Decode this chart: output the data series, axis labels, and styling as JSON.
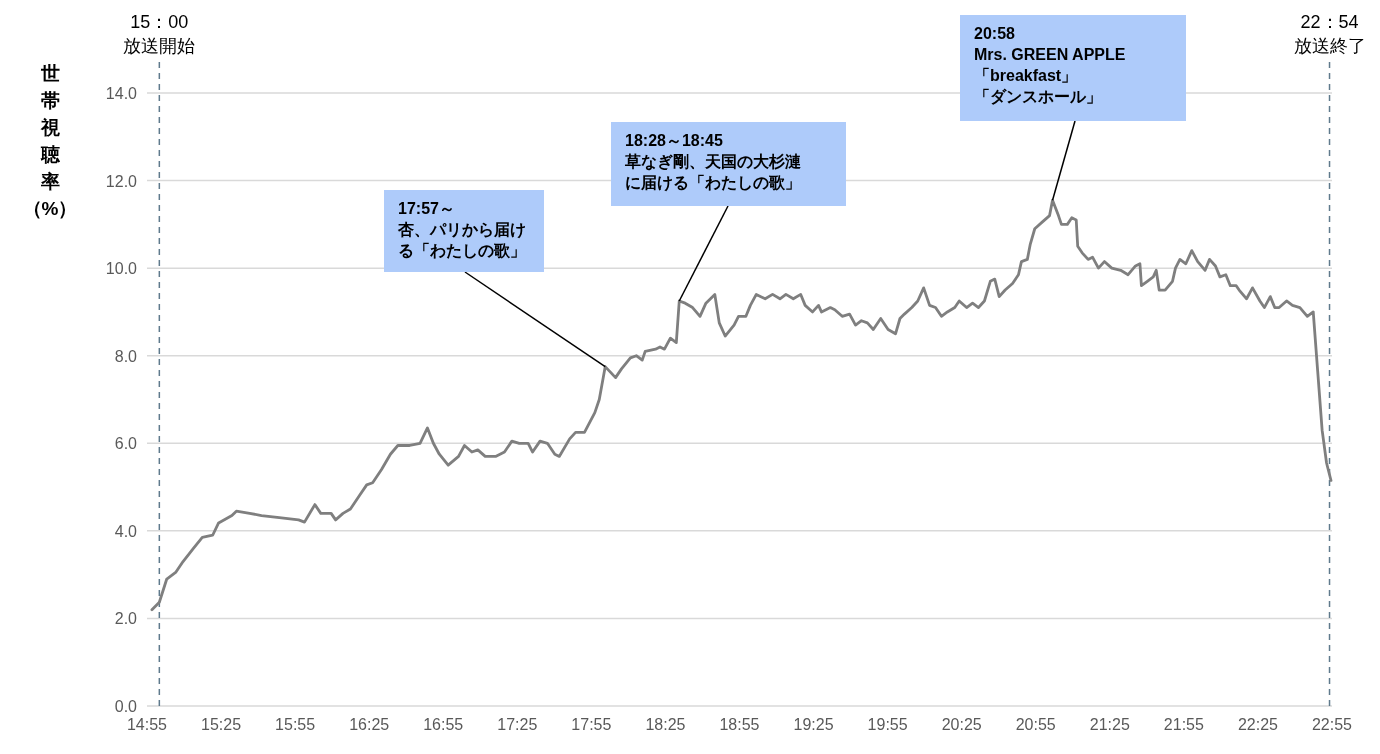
{
  "chart_data": {
    "type": "line",
    "ylabel": "世帯視聴率（%）",
    "grid": "y",
    "marker": "none",
    "line_style": "solid",
    "xlim": [
      14.9167,
      22.9167
    ],
    "ylim": [
      0,
      14
    ],
    "xticks": [
      {
        "value": 14.9167,
        "label": "14:55"
      },
      {
        "value": 15.4167,
        "label": "15:25"
      },
      {
        "value": 15.9167,
        "label": "15:55"
      },
      {
        "value": 16.4167,
        "label": "16:25"
      },
      {
        "value": 16.9167,
        "label": "16:55"
      },
      {
        "value": 17.4167,
        "label": "17:25"
      },
      {
        "value": 17.9167,
        "label": "17:55"
      },
      {
        "value": 18.4167,
        "label": "18:25"
      },
      {
        "value": 18.9167,
        "label": "18:55"
      },
      {
        "value": 19.4167,
        "label": "19:25"
      },
      {
        "value": 19.9167,
        "label": "19:55"
      },
      {
        "value": 20.4167,
        "label": "20:25"
      },
      {
        "value": 20.9167,
        "label": "20:55"
      },
      {
        "value": 21.4167,
        "label": "21:25"
      },
      {
        "value": 21.9167,
        "label": "21:55"
      },
      {
        "value": 22.4167,
        "label": "22:25"
      },
      {
        "value": 22.9167,
        "label": "22:55"
      }
    ],
    "yticks": [
      {
        "value": 0,
        "label": "0.0"
      },
      {
        "value": 2,
        "label": "2.0"
      },
      {
        "value": 4,
        "label": "4.0"
      },
      {
        "value": 6,
        "label": "6.0"
      },
      {
        "value": 8,
        "label": "8.0"
      },
      {
        "value": 10,
        "label": "10.0"
      },
      {
        "value": 12,
        "label": "12.0"
      },
      {
        "value": 14,
        "label": "14.0"
      }
    ],
    "ref_lines": [
      {
        "axis": "x",
        "value": 15.0,
        "label": "15：00\n放送開始",
        "color": "#5f7a8c",
        "line_style": "dashed"
      },
      {
        "axis": "x",
        "value": 22.9,
        "label": "22：54\n放送終了",
        "color": "#5f7a8c",
        "line_style": "dashed"
      }
    ],
    "annotations": [
      {
        "text": "17:57～杏、パリから届ける「わたしの歌」",
        "x": 18.01,
        "y": 7.75
      },
      {
        "text": "18:28～18:45草なぎ剛、天国の大杉漣に届ける「わたしの歌」",
        "x": 18.51,
        "y": 9.25
      },
      {
        "text": "20:58 Mrs. GREEN APPLE 「breakfast」「ダンスホール」",
        "x": 21.03,
        "y": 11.55
      }
    ],
    "series": [
      {
        "color": "#7f7f7f",
        "x": [
          14.95,
          15.0,
          15.05,
          15.11,
          15.16,
          15.23,
          15.29,
          15.36,
          15.4,
          15.49,
          15.52,
          15.61,
          15.69,
          15.81,
          15.94,
          15.98,
          16.05,
          16.09,
          16.16,
          16.19,
          16.24,
          16.29,
          16.35,
          16.4,
          16.44,
          16.5,
          16.56,
          16.61,
          16.69,
          16.76,
          16.81,
          16.85,
          16.89,
          16.95,
          17.02,
          17.06,
          17.11,
          17.15,
          17.2,
          17.27,
          17.33,
          17.38,
          17.43,
          17.49,
          17.52,
          17.57,
          17.62,
          17.67,
          17.7,
          17.77,
          17.81,
          17.87,
          17.94,
          17.97,
          18.01,
          18.08,
          18.12,
          18.18,
          18.22,
          18.26,
          18.28,
          18.35,
          18.38,
          18.41,
          18.45,
          18.49,
          18.51,
          18.55,
          18.6,
          18.65,
          18.69,
          18.75,
          18.78,
          18.82,
          18.88,
          18.91,
          18.96,
          18.99,
          19.03,
          19.09,
          19.14,
          19.19,
          19.23,
          19.28,
          19.33,
          19.36,
          19.41,
          19.45,
          19.47,
          19.53,
          19.56,
          19.61,
          19.66,
          19.7,
          19.74,
          19.78,
          19.82,
          19.87,
          19.92,
          19.97,
          20.0,
          20.03,
          20.08,
          20.12,
          20.16,
          20.2,
          20.24,
          20.28,
          20.32,
          20.37,
          20.4,
          20.45,
          20.49,
          20.53,
          20.57,
          20.61,
          20.64,
          20.67,
          20.71,
          20.76,
          20.8,
          20.82,
          20.86,
          20.88,
          20.91,
          20.96,
          21.01,
          21.03,
          21.07,
          21.09,
          21.13,
          21.16,
          21.19,
          21.2,
          21.23,
          21.27,
          21.3,
          21.34,
          21.38,
          21.43,
          21.49,
          21.54,
          21.59,
          21.62,
          21.63,
          21.67,
          21.71,
          21.73,
          21.75,
          21.79,
          21.84,
          21.86,
          21.89,
          21.93,
          21.97,
          22.01,
          22.06,
          22.09,
          22.13,
          22.16,
          22.2,
          22.23,
          22.27,
          22.29,
          22.34,
          22.38,
          22.43,
          22.46,
          22.5,
          22.53,
          22.56,
          22.61,
          22.65,
          22.7,
          22.75,
          22.79,
          22.82,
          22.85,
          22.88,
          22.91
        ],
        "values": [
          2.2,
          2.37,
          2.9,
          3.05,
          3.3,
          3.6,
          3.85,
          3.9,
          4.18,
          4.35,
          4.45,
          4.4,
          4.35,
          4.3,
          4.25,
          4.2,
          4.6,
          4.4,
          4.4,
          4.25,
          4.4,
          4.5,
          4.8,
          5.05,
          5.1,
          5.4,
          5.75,
          5.95,
          5.95,
          6.0,
          6.35,
          6.0,
          5.75,
          5.5,
          5.7,
          5.95,
          5.8,
          5.85,
          5.7,
          5.7,
          5.8,
          6.05,
          6.0,
          6.0,
          5.8,
          6.05,
          6.0,
          5.75,
          5.7,
          6.1,
          6.25,
          6.25,
          6.7,
          7.0,
          7.75,
          7.5,
          7.7,
          7.95,
          8.0,
          7.9,
          8.1,
          8.15,
          8.2,
          8.15,
          8.4,
          8.3,
          9.25,
          9.2,
          9.1,
          8.9,
          9.2,
          9.4,
          8.75,
          8.45,
          8.7,
          8.9,
          8.9,
          9.15,
          9.4,
          9.3,
          9.4,
          9.3,
          9.4,
          9.3,
          9.4,
          9.15,
          9.0,
          9.15,
          9.0,
          9.1,
          9.05,
          8.9,
          8.95,
          8.7,
          8.8,
          8.75,
          8.6,
          8.85,
          8.6,
          8.5,
          8.85,
          8.95,
          9.1,
          9.25,
          9.55,
          9.15,
          9.1,
          8.9,
          9.0,
          9.1,
          9.25,
          9.1,
          9.2,
          9.1,
          9.25,
          9.7,
          9.75,
          9.35,
          9.5,
          9.65,
          9.85,
          10.15,
          10.2,
          10.55,
          10.9,
          11.05,
          11.2,
          11.55,
          11.2,
          11.0,
          11.0,
          11.15,
          11.1,
          10.5,
          10.35,
          10.2,
          10.25,
          10.0,
          10.15,
          10.0,
          9.95,
          9.85,
          10.05,
          10.1,
          9.6,
          9.7,
          9.8,
          9.95,
          9.5,
          9.5,
          9.7,
          10.0,
          10.2,
          10.1,
          10.4,
          10.15,
          9.95,
          10.2,
          10.05,
          9.8,
          9.85,
          9.6,
          9.6,
          9.5,
          9.3,
          9.55,
          9.25,
          9.1,
          9.35,
          9.1,
          9.1,
          9.25,
          9.15,
          9.1,
          8.9,
          9.0,
          7.65,
          6.3,
          5.55,
          5.15
        ]
      }
    ]
  }
}
